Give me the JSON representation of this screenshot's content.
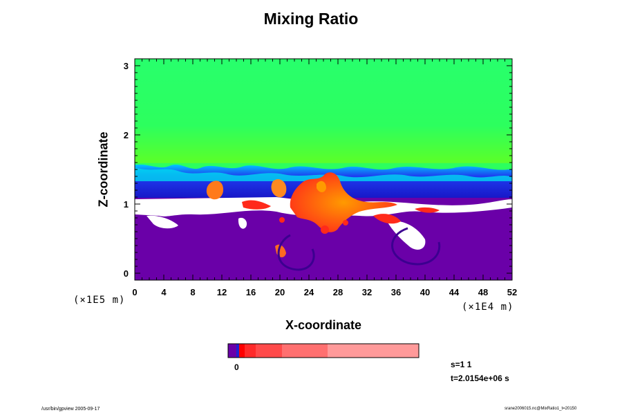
{
  "chart_data": {
    "type": "heatmap",
    "title": "Mixing Ratio",
    "xlabel": "X-coordinate",
    "ylabel": "Z-coordinate",
    "x_ticks": [
      "0",
      "4",
      "8",
      "12",
      "16",
      "20",
      "24",
      "28",
      "32",
      "36",
      "40",
      "44",
      "48",
      "52"
    ],
    "z_ticks": [
      "0",
      "1",
      "2",
      "3"
    ],
    "xlim": [
      0,
      52
    ],
    "zlim": [
      -0.1,
      3.1
    ],
    "x_unit": "(×1E4 m)",
    "z_unit": "(×1E5 m)",
    "colorbar": {
      "tick_labels": [
        "0"
      ],
      "colors": [
        "#6a00a8",
        "#2020d0",
        "#ff0000",
        "#ff2a2a",
        "#ff4a4a",
        "#ff7070",
        "#ff9a9a"
      ]
    },
    "info": {
      "step": "s=1 1",
      "time": "t=2.0154e+06 s"
    },
    "footer": {
      "left": "/usr/bin/gpview 2005-09-17",
      "right": "srane2006015.nc@MixRatio1_t=20150"
    },
    "colors": {
      "upper": "#22ff66",
      "lower": "#6a00a8",
      "band": "#1e1ee0",
      "plume": "#ff2a1a"
    }
  }
}
